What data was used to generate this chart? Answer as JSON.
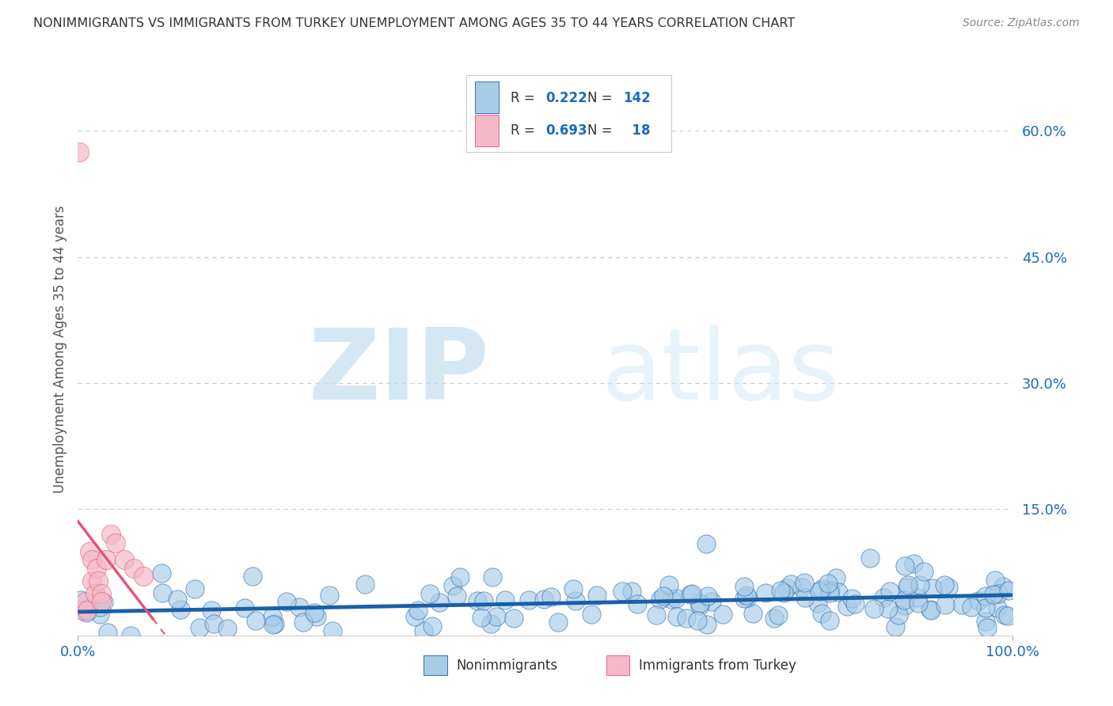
{
  "title": "NONIMMIGRANTS VS IMMIGRANTS FROM TURKEY UNEMPLOYMENT AMONG AGES 35 TO 44 YEARS CORRELATION CHART",
  "source": "Source: ZipAtlas.com",
  "ylabel": "Unemployment Among Ages 35 to 44 years",
  "watermark_zip": "ZIP",
  "watermark_atlas": "atlas",
  "blue_R": 0.222,
  "blue_N": 142,
  "pink_R": 0.693,
  "pink_N": 18,
  "blue_color": "#a8cce8",
  "pink_color": "#f4b8c8",
  "blue_line_color": "#1a5fa8",
  "pink_line_color": "#e8537a",
  "title_color": "#333333",
  "source_color": "#888888",
  "rn_text_color": "#333333",
  "value_color": "#1a6abf",
  "background_color": "#ffffff",
  "grid_color": "#cccccc",
  "xlim": [
    0.0,
    1.0
  ],
  "ylim": [
    0.0,
    0.68
  ],
  "yticks": [
    0.15,
    0.3,
    0.45,
    0.6
  ],
  "ytick_labels": [
    "15.0%",
    "30.0%",
    "45.0%",
    "60.0%"
  ],
  "xtick_labels": [
    "0.0%",
    "100.0%"
  ],
  "blue_seed": 42,
  "pink_x_values": [
    0.001,
    0.005,
    0.008,
    0.01,
    0.012,
    0.015,
    0.015,
    0.018,
    0.02,
    0.022,
    0.025,
    0.025,
    0.03,
    0.035,
    0.04,
    0.05,
    0.06,
    0.07
  ],
  "pink_y_values": [
    0.575,
    0.03,
    0.04,
    0.03,
    0.1,
    0.09,
    0.065,
    0.05,
    0.08,
    0.065,
    0.05,
    0.04,
    0.09,
    0.12,
    0.11,
    0.09,
    0.08,
    0.07
  ]
}
